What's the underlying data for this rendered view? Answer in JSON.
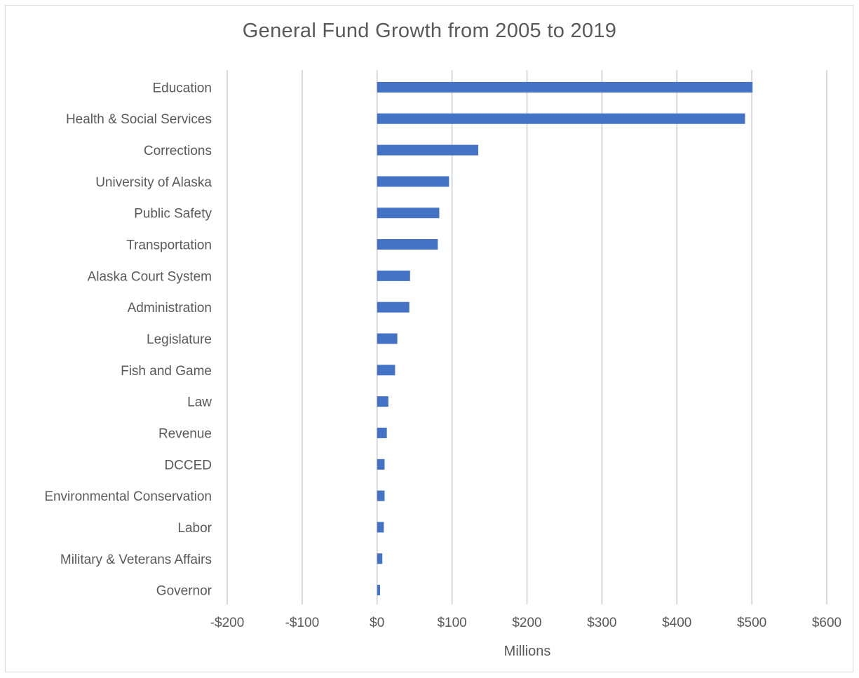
{
  "chart_data": {
    "type": "bar",
    "orientation": "horizontal",
    "title": "General Fund Growth from 2005 to 2019",
    "xlabel": "Millions",
    "ylabel": "",
    "xlim": [
      -200,
      600
    ],
    "x_ticks": [
      -200,
      -100,
      0,
      100,
      200,
      300,
      400,
      500,
      600
    ],
    "x_tick_labels": [
      "-$200",
      "-$100",
      "$0",
      "$100",
      "$200",
      "$300",
      "$400",
      "$500",
      "$600"
    ],
    "grid": true,
    "legend": "none",
    "bar_color": "#4472c4",
    "gridline_color": "#d9d9d9",
    "categories": [
      "Education",
      "Health & Social Services",
      "Corrections",
      "University of Alaska",
      "Public Safety",
      "Transportation",
      "Alaska Court System",
      "Administration",
      "Legislature",
      "Fish and Game",
      "Law",
      "Revenue",
      "DCCED",
      "Environmental Conservation",
      "Labor",
      "Military & Veterans Affairs",
      "Governor"
    ],
    "values": [
      501,
      491,
      135,
      96,
      83,
      81,
      44,
      43,
      27,
      24,
      15,
      13,
      10,
      10,
      9,
      7,
      4
    ]
  }
}
